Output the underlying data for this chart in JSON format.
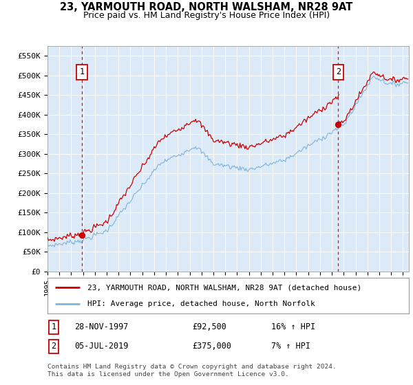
{
  "title": "23, YARMOUTH ROAD, NORTH WALSHAM, NR28 9AT",
  "subtitle": "Price paid vs. HM Land Registry's House Price Index (HPI)",
  "bg_color": "#dce9f7",
  "hpi_color": "#7eb4d8",
  "price_color": "#cc0000",
  "marker_color": "#cc0000",
  "dashed_color": "#cc0000",
  "ylim": [
    0,
    575000
  ],
  "yticks": [
    0,
    50000,
    100000,
    150000,
    200000,
    250000,
    300000,
    350000,
    400000,
    450000,
    500000,
    550000
  ],
  "ytick_labels": [
    "£0",
    "£50K",
    "£100K",
    "£150K",
    "£200K",
    "£250K",
    "£300K",
    "£350K",
    "£400K",
    "£450K",
    "£500K",
    "£550K"
  ],
  "xlim_start": 1995.0,
  "xlim_end": 2025.5,
  "sale1_date": 1997.91,
  "sale1_price": 92500,
  "sale2_date": 2019.54,
  "sale2_price": 375000,
  "legend_label1": "23, YARMOUTH ROAD, NORTH WALSHAM, NR28 9AT (detached house)",
  "legend_label2": "HPI: Average price, detached house, North Norfolk",
  "annotation1_label": "1",
  "annotation2_label": "2",
  "footer": "Contains HM Land Registry data © Crown copyright and database right 2024.\nThis data is licensed under the Open Government Licence v3.0."
}
